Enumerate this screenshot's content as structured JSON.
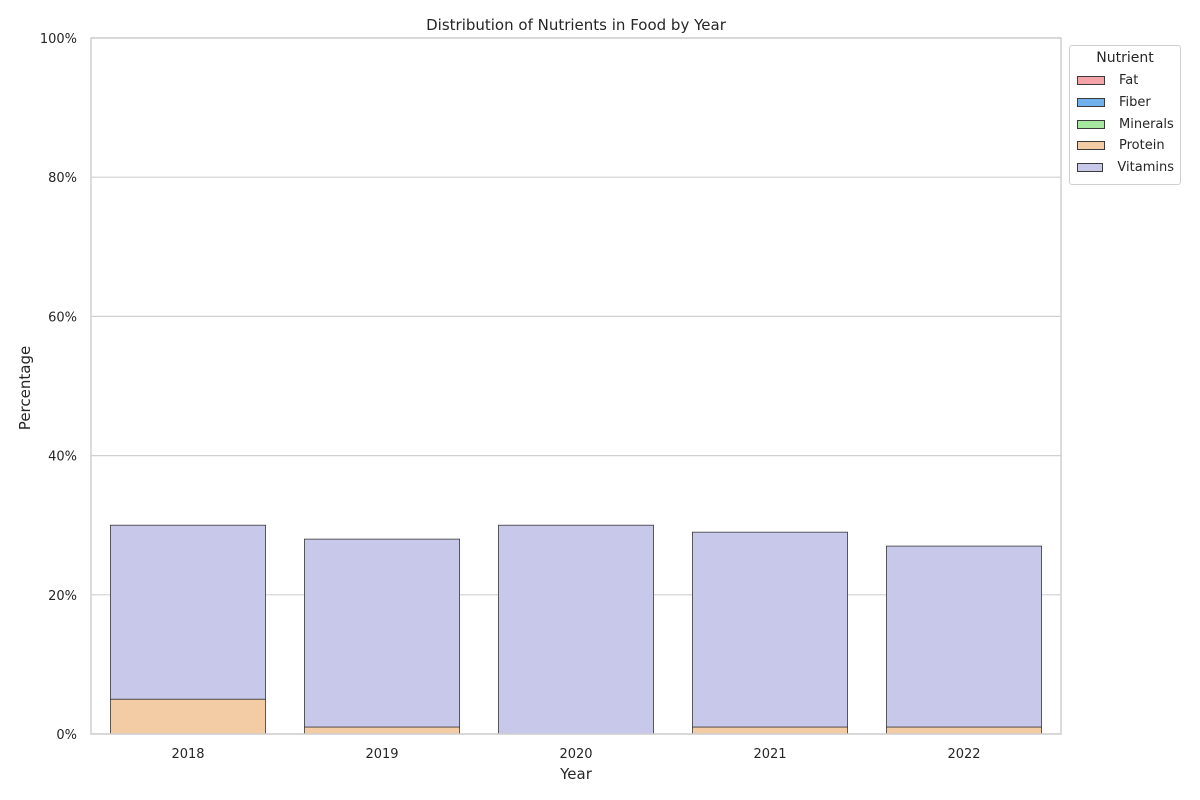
{
  "chart_data": {
    "type": "bar",
    "stacked": true,
    "title": "Distribution of Nutrients in Food by Year",
    "xlabel": "Year",
    "ylabel": "Percentage",
    "categories": [
      "2018",
      "2019",
      "2020",
      "2021",
      "2022"
    ],
    "ylim": [
      0,
      100
    ],
    "yticks": [
      "0%",
      "20%",
      "40%",
      "60%",
      "80%",
      "100%"
    ],
    "ytick_values": [
      0,
      20,
      40,
      60,
      80,
      100
    ],
    "grid": true,
    "legend": {
      "title": "Nutrient",
      "placement": "upper-right-outside"
    },
    "series": [
      {
        "name": "Fat",
        "color": "#f4a3a8",
        "values": [
          0,
          0,
          0,
          0,
          0
        ]
      },
      {
        "name": "Fiber",
        "color": "#6fb0ed",
        "values": [
          0,
          0,
          0,
          0,
          0
        ]
      },
      {
        "name": "Minerals",
        "color": "#a6e8a0",
        "values": [
          0,
          0,
          0,
          0,
          0
        ]
      },
      {
        "name": "Protein",
        "color": "#f3cba5",
        "values": [
          5,
          1,
          0,
          1,
          1
        ]
      },
      {
        "name": "Vitamins",
        "color": "#c7c8ea",
        "values": [
          25,
          27,
          30,
          28,
          26
        ]
      }
    ]
  }
}
